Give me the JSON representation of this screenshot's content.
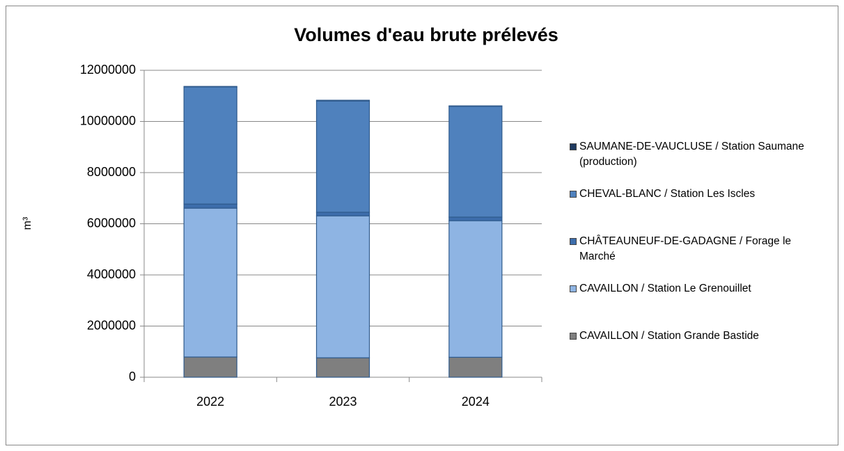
{
  "chart_data": {
    "type": "stacked_bar",
    "title": "Volumes d'eau brute prélevés",
    "y_label": "m³",
    "categories": [
      "2022",
      "2023",
      "2024"
    ],
    "series": [
      {
        "name": "CAVAILLON / Station Grande Bastide",
        "color": "#7f7f7f",
        "values": [
          790000,
          760000,
          780000
        ]
      },
      {
        "name": "CAVAILLON / Station Le Grenouillet",
        "color": "#8eb4e3",
        "values": [
          5820000,
          5550000,
          5340000
        ]
      },
      {
        "name": "CHÂTEAUNEUF-DE-GADAGNE / Forage le Marché",
        "color": "#3d6dab",
        "values": [
          160000,
          140000,
          140000
        ]
      },
      {
        "name": "CHEVAL-BLANC / Station Les Iscles",
        "color": "#4f81bd",
        "values": [
          4580000,
          4350000,
          4330000
        ]
      },
      {
        "name": "SAUMANE-DE-VAUCLUSE / Station Saumane (production)",
        "color": "#1f3a60",
        "values": [
          20000,
          30000,
          20000
        ]
      }
    ],
    "ylim": [
      0,
      12000000
    ],
    "yticks": [
      0,
      2000000,
      4000000,
      6000000,
      8000000,
      10000000,
      12000000
    ],
    "grid": true
  }
}
